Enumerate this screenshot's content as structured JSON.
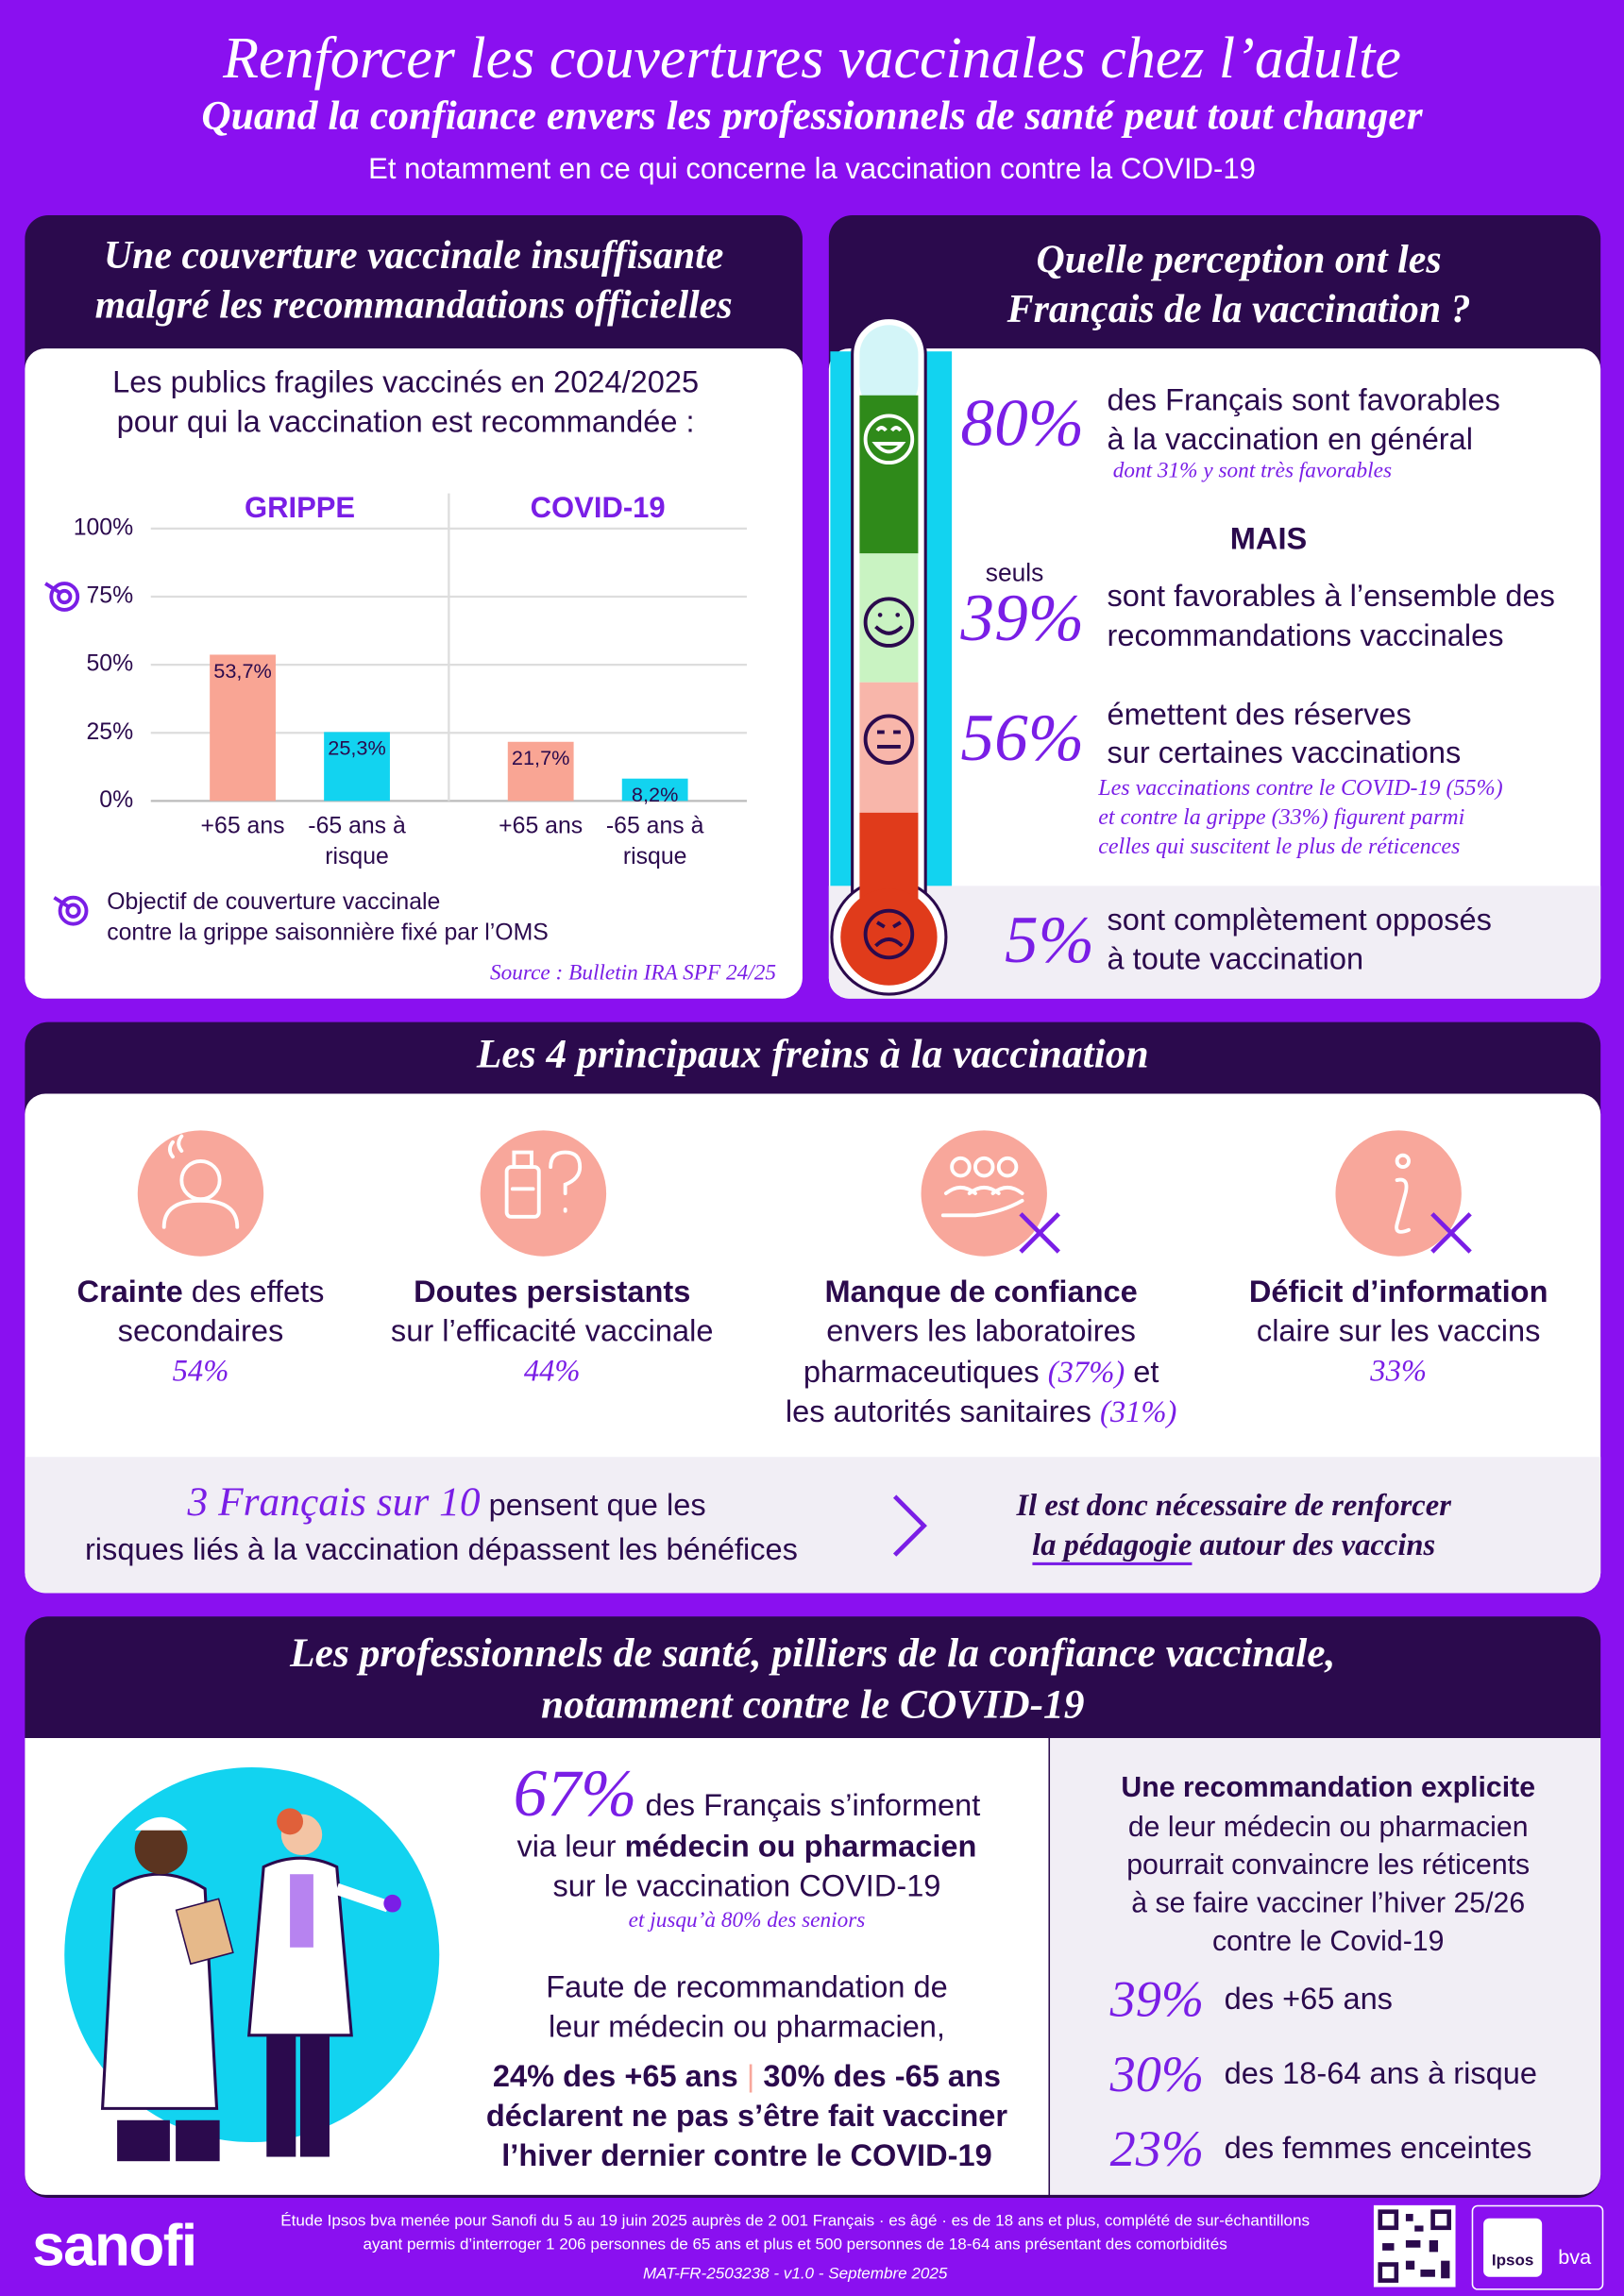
{
  "header": {
    "title": "Renforcer les couvertures vaccinales chez l’adulte",
    "subtitle": "Quand la confiance envers les professionnels de santé peut tout changer",
    "tagline": "Et notamment en ce qui concerne la vaccination contre la COVID-19"
  },
  "coverage": {
    "title_lines": [
      "Une couverture vaccinale insuffisante",
      "malgré les recommandations officielles"
    ]
  },
  "chart_data": {
    "type": "bar",
    "title_lines": [
      "Les publics fragiles vaccinés en 2024/2025",
      "pour qui la vaccination est recommandée :"
    ],
    "categories": [
      "GRIPPE",
      "COVID-19"
    ],
    "series": [
      {
        "name": "+65 ans",
        "color": "#f9a594",
        "values": [
          53.7,
          21.7
        ],
        "value_labels": [
          "53,7%",
          "21,7%"
        ]
      },
      {
        "name": "-65 ans à risque",
        "color": "#12d3f0",
        "values": [
          25.3,
          8.2
        ],
        "value_labels": [
          "25,3%",
          "8,2%"
        ]
      }
    ],
    "ylim": [
      0,
      100
    ],
    "yticks": [
      {
        "value": 0,
        "label": "0%"
      },
      {
        "value": 25,
        "label": "25%"
      },
      {
        "value": 50,
        "label": "50%"
      },
      {
        "value": 75,
        "label": "75%"
      },
      {
        "value": 100,
        "label": "100%"
      }
    ],
    "grid": true,
    "target": {
      "value": 75,
      "label_lines": [
        "Objectif de couverture vaccinale",
        "contre la grippe saisonnière fixé par l’OMS"
      ]
    },
    "source": "Source : Bulletin IRA SPF 24/25"
  },
  "perception": {
    "title_lines": [
      "Quelle perception ont les",
      "Français de la vaccination ?"
    ],
    "but": "MAIS",
    "only": "seuls",
    "items": [
      {
        "value_label": "80%",
        "lines": [
          "des Français sont favorables",
          "à la vaccination en général"
        ],
        "note_lines": [
          "dont 31% y sont très favorables"
        ]
      },
      {
        "value_label": "39%",
        "lines": [
          "sont favorables à l’ensemble des",
          "recommandations vaccinales"
        ]
      },
      {
        "value_label": "56%",
        "lines": [
          "émettent des réserves",
          "sur certaines vaccinations"
        ],
        "note_lines": [
          "Les vaccinations contre le COVID-19 (55%)",
          "et contre la grippe (33%) figurent parmi",
          "celles qui suscitent le plus de réticences"
        ]
      },
      {
        "value_label": "5%",
        "lines": [
          "sont complètement opposés",
          "à toute vaccination"
        ]
      }
    ]
  },
  "barriers": {
    "title": "Les 4 principaux freins à la vaccination",
    "items": [
      {
        "bold": "Crainte",
        "text_lines": [
          "des effets",
          "secondaires"
        ],
        "pct": "54%"
      },
      {
        "bold": "Doutes persistants",
        "text_lines": [
          "sur l’efficacité vaccinale"
        ],
        "pct": "44%"
      },
      {
        "bold": "Manque de confiance",
        "text_lines": [
          "envers les laboratoires",
          "pharmaceutiques",
          "et",
          "les autorités sanitaires"
        ],
        "pct": "(37%)",
        "pct2": "(31%)"
      },
      {
        "bold": "Déficit d’information",
        "text_lines": [
          "claire sur les vaccins"
        ],
        "pct": "33%"
      }
    ],
    "callout": {
      "stat": "3 Français sur 10",
      "lines": [
        "pensent que les",
        "risques liés à la vaccination dépassent les bénéfices"
      ]
    },
    "conclusion": {
      "line1": "Il est donc nécessaire de renforcer",
      "emphasis": "la pédagogie",
      "rest": "autour des vaccins"
    }
  },
  "professionals": {
    "title_lines": [
      "Les professionnels de santé, pilliers de la confiance vaccinale,",
      "notamment contre le COVID-19"
    ],
    "info": {
      "value_label": "67%",
      "line1": "des Français s’informent",
      "line2_pre": "via leur",
      "line2_bold": "médecin ou pharmacien",
      "line3": "sur le vaccination COVID-19",
      "note": "et jusqu’à 80% des seniors"
    },
    "no_rec": {
      "lines": [
        "Faute de recommandation de",
        "leur médecin ou pharmacien,"
      ],
      "stat_a": "24% des +65 ans",
      "stat_b": "30% des -65 ans",
      "bold_lines": [
        "déclarent ne pas s’être fait vacciner",
        "l’hiver dernier contre le COVID-19"
      ]
    },
    "explicit": {
      "bold": "Une recommandation explicite",
      "lines": [
        "de leur médecin ou pharmacien",
        "pourrait convaincre les réticents",
        "à se faire vacciner l’hiver 25/26",
        "contre le Covid-19"
      ],
      "items": [
        {
          "value_label": "39%",
          "text": "des +65 ans"
        },
        {
          "value_label": "30%",
          "text": "des 18-64 ans à risque"
        },
        {
          "value_label": "23%",
          "text": "des femmes enceintes"
        }
      ]
    }
  },
  "footer": {
    "logo": "sanofi",
    "study_lines": [
      "Étude Ipsos bva menée pour Sanofi du 5 au 19 juin 2025 auprès de 2 001 Français · es âgé · es de 18 ans et plus, complété de sur-échantillons",
      "ayant permis d’interroger 1 206 personnes de 65 ans et plus et 500 personnes de 18-64 ans présentant des comorbidités"
    ],
    "reference": "MAT-FR-2503238 - v1.0 - Septembre 2025",
    "partner": "Ipsos",
    "partner2": "bva"
  }
}
